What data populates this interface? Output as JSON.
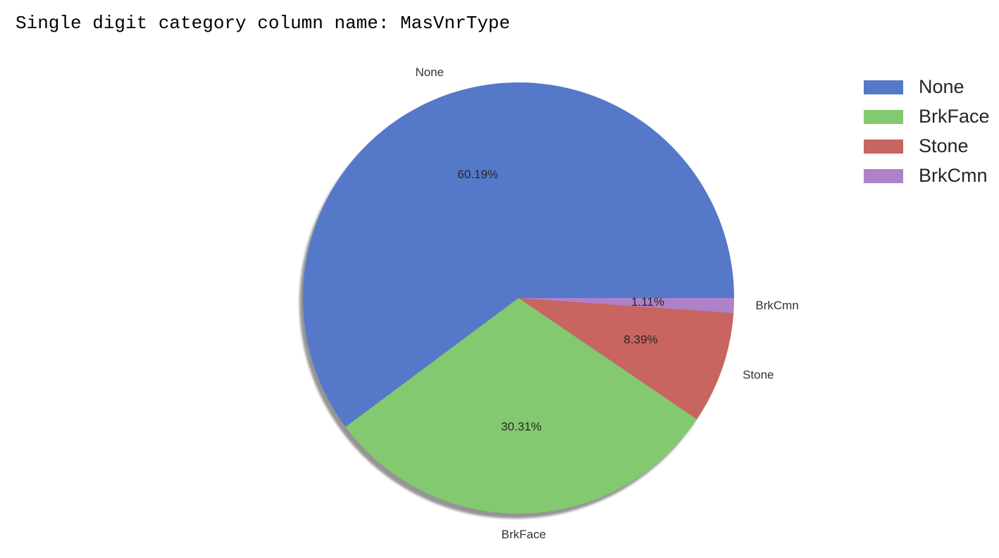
{
  "header": {
    "prefix": "Single digit category column name:",
    "column": "MasVnrType"
  },
  "chart_data": {
    "type": "pie",
    "labels": [
      "None",
      "BrkFace",
      "Stone",
      "BrkCmn"
    ],
    "values": [
      60.19,
      30.31,
      8.39,
      1.11
    ],
    "value_labels": [
      "60.19%",
      "30.31%",
      "8.39%",
      "1.11%"
    ],
    "colors": [
      "#5578c8",
      "#83c970",
      "#c86560",
      "#ad82c8"
    ],
    "shadow": true,
    "start_angle_deg": 0,
    "direction": "counterclockwise",
    "legend": {
      "placement": "top-right",
      "entries": [
        "None",
        "BrkFace",
        "Stone",
        "BrkCmn"
      ]
    }
  }
}
